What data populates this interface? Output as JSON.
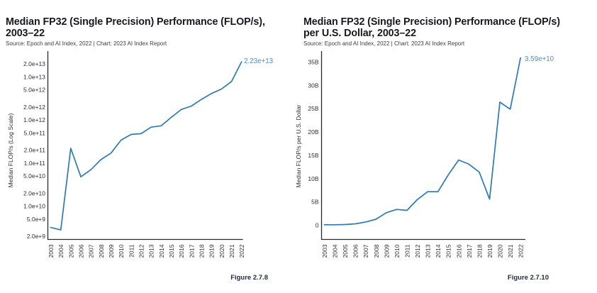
{
  "colors": {
    "background": "#ffffff",
    "title": "#17191f",
    "source_text": "#3d3d3d",
    "axis": "#2a2a2e",
    "tick_text": "#2b2d33",
    "line_blue": "#2d79b5",
    "annotation_blue": "#4a90ca",
    "figure_caption": "#252a42"
  },
  "chart_data": [
    {
      "id": "median-fp32-performance",
      "type": "line",
      "scale": "log",
      "title_line1": "Median FP32 (Single Precision) Performance (FLOP/s),",
      "title_line2": "2003–22",
      "source": "Source: Epoch and AI Index, 2022 | Chart: 2023 AI Index Report",
      "ylabel": "Median FLOP/s (Log Scale)",
      "figure_label": "Figure 2.7.8",
      "annotation": "2.23e+13",
      "line_color": "#2d79b5",
      "legend": "none",
      "grid": "off",
      "categories": [
        "2003",
        "2004",
        "2005",
        "2006",
        "2007",
        "2008",
        "2009",
        "2010",
        "2011",
        "2012",
        "2013",
        "2014",
        "2015",
        "2016",
        "2017",
        "2018",
        "2019",
        "2020",
        "2021",
        "2022"
      ],
      "values": [
        3200000000.0,
        2800000000.0,
        220000000000.0,
        48000000000.0,
        70000000000.0,
        120000000000.0,
        170000000000.0,
        340000000000.0,
        460000000000.0,
        480000000000.0,
        680000000000.0,
        730000000000.0,
        1150000000000.0,
        1750000000000.0,
        2100000000000.0,
        3000000000000.0,
        4100000000000.0,
        5200000000000.0,
        7800000000000.0,
        22300000000000.0
      ],
      "ylim": [
        2000000000.0,
        20000000000000.0
      ],
      "yticks": [
        {
          "label": "2.0e+13",
          "value": 20000000000000.0
        },
        {
          "label": "1.0e+13",
          "value": 10000000000000.0
        },
        {
          "label": "5.0e+12",
          "value": 5000000000000.0
        },
        {
          "label": "2.0e+12",
          "value": 2000000000000.0
        },
        {
          "label": "1.0e+12",
          "value": 1000000000000.0
        },
        {
          "label": "5.0e+11",
          "value": 500000000000.0
        },
        {
          "label": "2.0e+11",
          "value": 200000000000.0
        },
        {
          "label": "1.0e+11",
          "value": 100000000000.0
        },
        {
          "label": "5.0e+10",
          "value": 50000000000.0
        },
        {
          "label": "2.0e+10",
          "value": 20000000000.0
        },
        {
          "label": "1.0e+10",
          "value": 10000000000.0
        },
        {
          "label": "5.0e+9",
          "value": 5000000000.0
        },
        {
          "label": "2.0e+9",
          "value": 2000000000.0
        }
      ]
    },
    {
      "id": "median-fp32-performance-per-dollar",
      "type": "line",
      "scale": "linear",
      "title_line1": "Median FP32 (Single Precision) Performance (FLOP/s)",
      "title_line2": "per U.S. Dollar, 2003–22",
      "source": "Source: Epoch and AI Index, 2022 | Chart: 2023 AI Index Report",
      "ylabel": "Median FLOP/s per U.S. Dollar",
      "figure_label": "Figure 2.7.10",
      "annotation": "3.59e+10",
      "line_color": "#2d79b5",
      "legend": "none",
      "grid": "off",
      "categories": [
        "2003",
        "2004",
        "2005",
        "2006",
        "2007",
        "2008",
        "2009",
        "2010",
        "2011",
        "2012",
        "2013",
        "2014",
        "2015",
        "2016",
        "2017",
        "2018",
        "2019",
        "2020",
        "2021",
        "2022"
      ],
      "values": [
        100000000.0,
        100000000.0,
        150000000.0,
        300000000.0,
        700000000.0,
        1300000000.0,
        2700000000.0,
        3400000000.0,
        3200000000.0,
        5500000000.0,
        7200000000.0,
        7200000000.0,
        10800000000.0,
        14000000000.0,
        13100000000.0,
        11400000000.0,
        5600000000.0,
        26400000000.0,
        24900000000.0,
        35900000000.0
      ],
      "ylim": [
        0,
        35000000000.0
      ],
      "yticks": [
        {
          "label": "35B",
          "value": 35000000000.0
        },
        {
          "label": "30B",
          "value": 30000000000.0
        },
        {
          "label": "25B",
          "value": 25000000000.0
        },
        {
          "label": "20B",
          "value": 20000000000.0
        },
        {
          "label": "15B",
          "value": 15000000000.0
        },
        {
          "label": "10B",
          "value": 10000000000.0
        },
        {
          "label": "5B",
          "value": 5000000000.0
        },
        {
          "label": "0",
          "value": 0
        }
      ]
    }
  ]
}
